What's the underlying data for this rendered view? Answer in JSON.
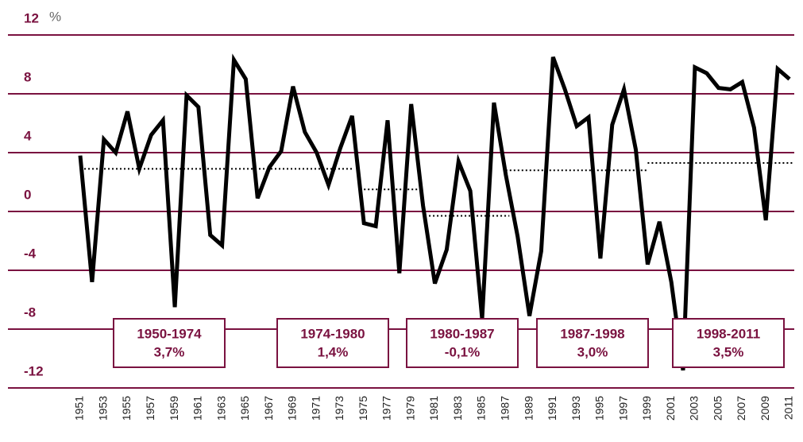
{
  "chart_data": {
    "type": "line",
    "unit_label": "%",
    "categories": [
      "1951",
      null,
      "1953",
      null,
      "1955",
      null,
      "1957",
      null,
      "1959",
      null,
      "1961",
      null,
      "1963",
      null,
      "1965",
      null,
      "1967",
      null,
      "1969",
      null,
      "1971",
      null,
      "1973",
      null,
      "1975",
      null,
      "1977",
      null,
      "1979",
      null,
      "1981",
      null,
      "1983",
      null,
      "1985",
      null,
      "1987",
      null,
      "1989",
      null,
      "1991",
      null,
      "1993",
      null,
      "1995",
      null,
      "1997",
      null,
      "1999",
      null,
      "2001",
      null,
      "2003",
      null,
      "2005",
      null,
      "2007",
      null,
      "2009",
      null,
      "2011"
    ],
    "series": [
      {
        "color": "#000000",
        "values": [
          3.8,
          -4.8,
          4.9,
          4.0,
          6.8,
          2.9,
          5.2,
          6.2,
          -6.5,
          7.9,
          7.1,
          -1.6,
          -2.3,
          10.3,
          9.0,
          0.9,
          3.0,
          4.1,
          8.5,
          5.4,
          4.0,
          1.8,
          4.3,
          6.5,
          -0.8,
          -1.0,
          6.2,
          -4.2,
          7.3,
          0.4,
          -4.9,
          -2.6,
          3.4,
          1.4,
          -7.3,
          7.4,
          2.5,
          -1.7,
          -7.1,
          -2.7,
          10.5,
          8.3,
          5.8,
          6.4,
          -3.2,
          5.9,
          8.3,
          4.2,
          -3.6,
          -0.7,
          -4.8,
          -10.8,
          9.8,
          9.4,
          8.4,
          8.3,
          8.8,
          5.7,
          -0.6,
          9.7,
          9.0
        ]
      }
    ],
    "average_lines": [
      {
        "start": 1951,
        "end": 1974,
        "value": 2.9
      },
      {
        "start": 1975,
        "end": 1980,
        "value": 1.5
      },
      {
        "start": 1980.5,
        "end": 1987.3,
        "value": -0.3
      },
      {
        "start": 1987,
        "end": 1999,
        "value": 2.8
      },
      {
        "start": 1999,
        "end": 2011.4,
        "value": 3.3
      }
    ],
    "period_boxes": [
      {
        "period": "1950-1974",
        "label": "3,7%"
      },
      {
        "period": "1974-1980",
        "label": "1,4%"
      },
      {
        "period": "1980-1987",
        "label": "-0,1%"
      },
      {
        "period": "1987-1998",
        "label": "3,0%"
      },
      {
        "period": "1998-2011",
        "label": "3,5%"
      }
    ],
    "ylim": [
      -12,
      12
    ],
    "yticks": [
      -12,
      -8,
      -4,
      0,
      4,
      8,
      12
    ],
    "grid": true,
    "grid_color": "#7a1240"
  }
}
